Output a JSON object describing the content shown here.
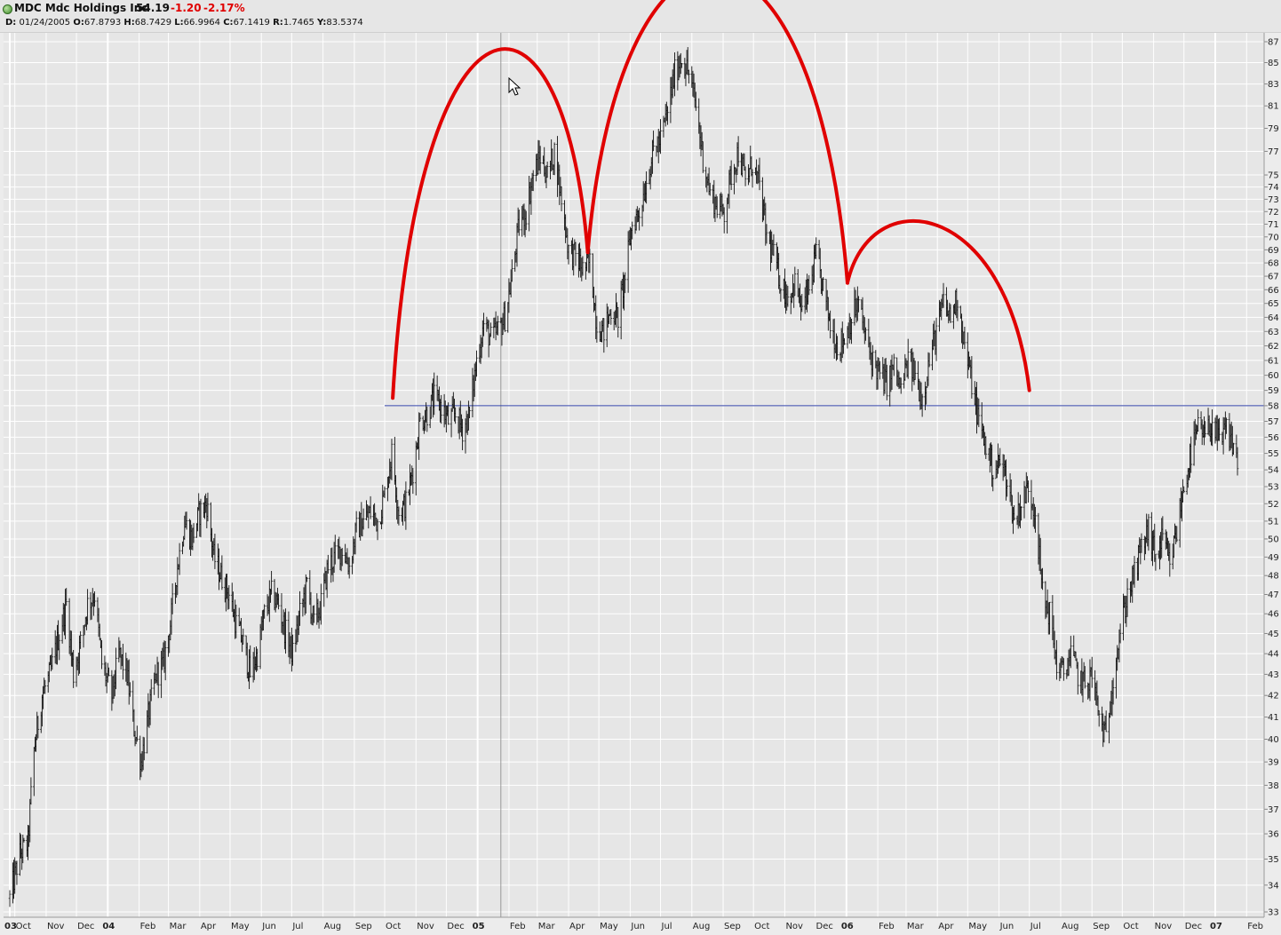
{
  "header": {
    "symbol_name": "MDC Mdc Holdings Inc",
    "last_price": "54.19",
    "change": "-1.20",
    "change_pct": "-2.17%",
    "date_label": "D:",
    "date": "01/24/2005",
    "o_label": "O:",
    "o": "67.8793",
    "h_label": "H:",
    "h": "68.7429",
    "l_label": "L:",
    "l": "66.9964",
    "c_label": "C:",
    "c": "67.1419",
    "r_label": "R:",
    "r": "1.7465",
    "y_label": "Y:",
    "y": "83.5374"
  },
  "colors": {
    "background": "#ececec",
    "plot_background": "#e6e6e6",
    "gridline": "#ffffff",
    "price_bars": "#111111",
    "hand_drawn_pattern": "#e00000",
    "reference_line": "#3344aa",
    "crosshair": "#999999",
    "negative_change": "#e00000"
  },
  "chart_data": {
    "type": "bar",
    "subtype": "ohlc",
    "y_scale": "log",
    "ylim": [
      33,
      87
    ],
    "xlim": [
      "2003-09-24",
      "2007-02-26"
    ],
    "y_ticks": [
      33,
      34,
      35,
      36,
      37,
      38,
      39,
      40,
      41,
      42,
      43,
      44,
      45,
      46,
      47,
      48,
      49,
      50,
      51,
      52,
      53,
      54,
      55,
      56,
      57,
      58,
      59,
      60,
      61,
      62,
      63,
      64,
      65,
      66,
      67,
      68,
      69,
      70,
      71,
      72,
      73,
      74,
      75,
      77,
      79,
      81,
      83,
      85,
      87
    ],
    "x_ticks": [
      {
        "label": "03",
        "date": "2003-09-26",
        "bold": true
      },
      {
        "label": "Oct",
        "date": "2003-10-01"
      },
      {
        "label": "Nov",
        "date": "2003-11-01"
      },
      {
        "label": "Dec",
        "date": "2003-12-01"
      },
      {
        "label": "04",
        "date": "2004-01-01",
        "bold": true
      },
      {
        "label": "Feb",
        "date": "2004-02-01"
      },
      {
        "label": "Mar",
        "date": "2004-03-01"
      },
      {
        "label": "Apr",
        "date": "2004-04-01"
      },
      {
        "label": "May",
        "date": "2004-05-01"
      },
      {
        "label": "Jun",
        "date": "2004-06-01"
      },
      {
        "label": "Jul",
        "date": "2004-07-01"
      },
      {
        "label": "Aug",
        "date": "2004-08-01"
      },
      {
        "label": "Sep",
        "date": "2004-09-01"
      },
      {
        "label": "Oct",
        "date": "2004-10-01"
      },
      {
        "label": "Nov",
        "date": "2004-11-01"
      },
      {
        "label": "Dec",
        "date": "2004-12-01"
      },
      {
        "label": "05",
        "date": "2005-01-01",
        "bold": true
      },
      {
        "label": "Feb",
        "date": "2005-02-01"
      },
      {
        "label": "Mar",
        "date": "2005-03-01"
      },
      {
        "label": "Apr",
        "date": "2005-04-01"
      },
      {
        "label": "May",
        "date": "2005-05-01"
      },
      {
        "label": "Jun",
        "date": "2005-06-01"
      },
      {
        "label": "Jul",
        "date": "2005-07-01"
      },
      {
        "label": "Aug",
        "date": "2005-08-01"
      },
      {
        "label": "Sep",
        "date": "2005-09-01"
      },
      {
        "label": "Oct",
        "date": "2005-10-01"
      },
      {
        "label": "Nov",
        "date": "2005-11-01"
      },
      {
        "label": "Dec",
        "date": "2005-12-01"
      },
      {
        "label": "06",
        "date": "2006-01-01",
        "bold": true
      },
      {
        "label": "Feb",
        "date": "2006-02-01"
      },
      {
        "label": "Mar",
        "date": "2006-03-01"
      },
      {
        "label": "Apr",
        "date": "2006-04-01"
      },
      {
        "label": "May",
        "date": "2006-05-01"
      },
      {
        "label": "Jun",
        "date": "2006-06-01"
      },
      {
        "label": "Jul",
        "date": "2006-07-01"
      },
      {
        "label": "Aug",
        "date": "2006-08-01"
      },
      {
        "label": "Sep",
        "date": "2006-09-01"
      },
      {
        "label": "Oct",
        "date": "2006-10-01"
      },
      {
        "label": "Nov",
        "date": "2006-11-01"
      },
      {
        "label": "Dec",
        "date": "2006-12-01"
      },
      {
        "label": "07",
        "date": "2007-01-01",
        "bold": true
      },
      {
        "label": "Feb",
        "date": "2007-02-01"
      }
    ],
    "grid": true,
    "price_path": [
      [
        "2003-09-26",
        33.5
      ],
      [
        "2003-10-06",
        35.2
      ],
      [
        "2003-10-14",
        35.6
      ],
      [
        "2003-10-20",
        39.5
      ],
      [
        "2003-10-28",
        42.0
      ],
      [
        "2003-11-05",
        43.0
      ],
      [
        "2003-11-14",
        45.0
      ],
      [
        "2003-11-21",
        46.5
      ],
      [
        "2003-11-28",
        43.0
      ],
      [
        "2003-12-05",
        44.5
      ],
      [
        "2003-12-12",
        46.5
      ],
      [
        "2003-12-19",
        47.0
      ],
      [
        "2003-12-26",
        43.5
      ],
      [
        "2004-01-05",
        42.0
      ],
      [
        "2004-01-12",
        44.0
      ],
      [
        "2004-01-20",
        43.0
      ],
      [
        "2004-01-27",
        40.5
      ],
      [
        "2004-02-03",
        39.0
      ],
      [
        "2004-02-10",
        41.0
      ],
      [
        "2004-02-18",
        43.0
      ],
      [
        "2004-02-25",
        43.5
      ],
      [
        "2004-03-03",
        45.5
      ],
      [
        "2004-03-10",
        48.5
      ],
      [
        "2004-03-17",
        51.0
      ],
      [
        "2004-03-24",
        50.0
      ],
      [
        "2004-04-01",
        51.5
      ],
      [
        "2004-04-08",
        52.0
      ],
      [
        "2004-04-15",
        49.0
      ],
      [
        "2004-04-22",
        48.0
      ],
      [
        "2004-04-30",
        47.0
      ],
      [
        "2004-05-07",
        45.5
      ],
      [
        "2004-05-14",
        44.5
      ],
      [
        "2004-05-21",
        43.0
      ],
      [
        "2004-05-28",
        44.0
      ],
      [
        "2004-06-04",
        46.0
      ],
      [
        "2004-06-11",
        47.0
      ],
      [
        "2004-06-18",
        46.5
      ],
      [
        "2004-06-25",
        45.0
      ],
      [
        "2004-07-02",
        44.0
      ],
      [
        "2004-07-09",
        46.0
      ],
      [
        "2004-07-16",
        47.5
      ],
      [
        "2004-07-23",
        45.5
      ],
      [
        "2004-07-30",
        46.5
      ],
      [
        "2004-08-06",
        48.5
      ],
      [
        "2004-08-13",
        49.0
      ],
      [
        "2004-08-20",
        49.5
      ],
      [
        "2004-08-27",
        48.5
      ],
      [
        "2004-09-03",
        50.5
      ],
      [
        "2004-09-10",
        51.0
      ],
      [
        "2004-09-17",
        51.5
      ],
      [
        "2004-09-24",
        51.0
      ],
      [
        "2004-10-01",
        52.5
      ],
      [
        "2004-10-08",
        55.0
      ],
      [
        "2004-10-15",
        51.5
      ],
      [
        "2004-10-22",
        52.0
      ],
      [
        "2004-10-29",
        54.0
      ],
      [
        "2004-11-05",
        57.0
      ],
      [
        "2004-11-12",
        57.5
      ],
      [
        "2004-11-19",
        58.5
      ],
      [
        "2004-11-26",
        58.0
      ],
      [
        "2004-12-03",
        57.0
      ],
      [
        "2004-12-10",
        57.5
      ],
      [
        "2004-12-17",
        56.5
      ],
      [
        "2004-12-24",
        57.5
      ],
      [
        "2004-12-31",
        61.0
      ],
      [
        "2005-01-07",
        63.5
      ],
      [
        "2005-01-14",
        62.5
      ],
      [
        "2005-01-21",
        63.0
      ],
      [
        "2005-01-28",
        64.0
      ],
      [
        "2005-02-04",
        67.0
      ],
      [
        "2005-02-11",
        71.0
      ],
      [
        "2005-02-18",
        72.0
      ],
      [
        "2005-02-25",
        75.0
      ],
      [
        "2005-03-04",
        76.5
      ],
      [
        "2005-03-11",
        75.0
      ],
      [
        "2005-03-18",
        77.0
      ],
      [
        "2005-03-25",
        73.0
      ],
      [
        "2005-04-01",
        69.0
      ],
      [
        "2005-04-08",
        68.5
      ],
      [
        "2005-04-15",
        67.5
      ],
      [
        "2005-04-22",
        68.0
      ],
      [
        "2005-04-29",
        63.5
      ],
      [
        "2005-05-06",
        63.0
      ],
      [
        "2005-05-13",
        64.5
      ],
      [
        "2005-05-20",
        64.0
      ],
      [
        "2005-05-27",
        67.0
      ],
      [
        "2005-06-03",
        71.0
      ],
      [
        "2005-06-10",
        72.0
      ],
      [
        "2005-06-17",
        74.5
      ],
      [
        "2005-06-24",
        77.0
      ],
      [
        "2005-07-01",
        78.0
      ],
      [
        "2005-07-08",
        80.5
      ],
      [
        "2005-07-15",
        84.0
      ],
      [
        "2005-07-22",
        85.5
      ],
      [
        "2005-07-29",
        84.0
      ],
      [
        "2005-08-05",
        81.0
      ],
      [
        "2005-08-12",
        76.5
      ],
      [
        "2005-08-19",
        73.5
      ],
      [
        "2005-08-26",
        72.5
      ],
      [
        "2005-09-02",
        72.0
      ],
      [
        "2005-09-09",
        75.0
      ],
      [
        "2005-09-16",
        77.0
      ],
      [
        "2005-09-23",
        74.5
      ],
      [
        "2005-09-30",
        76.0
      ],
      [
        "2005-10-07",
        74.0
      ],
      [
        "2005-10-14",
        70.0
      ],
      [
        "2005-10-21",
        68.5
      ],
      [
        "2005-10-28",
        66.5
      ],
      [
        "2005-11-04",
        65.5
      ],
      [
        "2005-11-11",
        66.5
      ],
      [
        "2005-11-18",
        64.5
      ],
      [
        "2005-11-25",
        66.0
      ],
      [
        "2005-12-02",
        68.5
      ],
      [
        "2005-12-09",
        66.0
      ],
      [
        "2005-12-16",
        63.5
      ],
      [
        "2005-12-23",
        62.0
      ],
      [
        "2005-12-30",
        62.5
      ],
      [
        "2006-01-06",
        64.0
      ],
      [
        "2006-01-13",
        65.0
      ],
      [
        "2006-01-20",
        62.5
      ],
      [
        "2006-01-27",
        61.0
      ],
      [
        "2006-02-03",
        60.0
      ],
      [
        "2006-02-10",
        59.5
      ],
      [
        "2006-02-17",
        60.5
      ],
      [
        "2006-02-24",
        59.0
      ],
      [
        "2006-03-03",
        61.0
      ],
      [
        "2006-03-10",
        60.0
      ],
      [
        "2006-03-17",
        58.5
      ],
      [
        "2006-03-24",
        61.0
      ],
      [
        "2006-03-31",
        63.0
      ],
      [
        "2006-04-07",
        65.0
      ],
      [
        "2006-04-14",
        64.0
      ],
      [
        "2006-04-21",
        65.5
      ],
      [
        "2006-04-28",
        62.0
      ],
      [
        "2006-05-05",
        59.5
      ],
      [
        "2006-05-12",
        57.0
      ],
      [
        "2006-05-19",
        55.5
      ],
      [
        "2006-05-26",
        54.0
      ],
      [
        "2006-06-02",
        54.5
      ],
      [
        "2006-06-09",
        53.5
      ],
      [
        "2006-06-16",
        51.0
      ],
      [
        "2006-06-23",
        52.0
      ],
      [
        "2006-06-30",
        53.0
      ],
      [
        "2006-07-07",
        51.5
      ],
      [
        "2006-07-14",
        47.0
      ],
      [
        "2006-07-21",
        46.0
      ],
      [
        "2006-07-28",
        43.5
      ],
      [
        "2006-08-04",
        43.0
      ],
      [
        "2006-08-11",
        44.0
      ],
      [
        "2006-08-18",
        43.0
      ],
      [
        "2006-08-25",
        42.5
      ],
      [
        "2006-09-01",
        43.0
      ],
      [
        "2006-09-08",
        41.0
      ],
      [
        "2006-09-15",
        40.0
      ],
      [
        "2006-09-22",
        43.0
      ],
      [
        "2006-09-29",
        45.0
      ],
      [
        "2006-10-06",
        47.0
      ],
      [
        "2006-10-13",
        48.0
      ],
      [
        "2006-10-20",
        49.5
      ],
      [
        "2006-10-27",
        50.5
      ],
      [
        "2006-11-03",
        49.0
      ],
      [
        "2006-11-10",
        50.0
      ],
      [
        "2006-11-17",
        48.5
      ],
      [
        "2006-11-24",
        50.5
      ],
      [
        "2006-12-01",
        53.0
      ],
      [
        "2006-12-08",
        55.0
      ],
      [
        "2006-12-15",
        56.5
      ],
      [
        "2006-12-22",
        56.0
      ],
      [
        "2006-12-29",
        57.0
      ],
      [
        "2007-01-05",
        55.5
      ],
      [
        "2007-01-12",
        56.5
      ],
      [
        "2007-01-19",
        55.5
      ],
      [
        "2007-01-24",
        54.19
      ]
    ],
    "reference_line": {
      "price": 58,
      "from": "2004-10-01",
      "to": "2007-02-26"
    },
    "crosshair_date": "2005-01-24",
    "pattern_arcs": [
      {
        "from": [
          "2004-10-09",
          58.5
        ],
        "to": [
          "2005-04-20",
          68.8
        ],
        "peak_price": 80.5
      },
      {
        "from": [
          "2005-04-20",
          68.8
        ],
        "to": [
          "2006-01-02",
          66.5
        ],
        "peak_price": 87.5
      },
      {
        "from": [
          "2006-01-02",
          66.5
        ],
        "to": [
          "2006-07-01",
          59.0
        ],
        "peak_price": 69.0
      }
    ]
  }
}
